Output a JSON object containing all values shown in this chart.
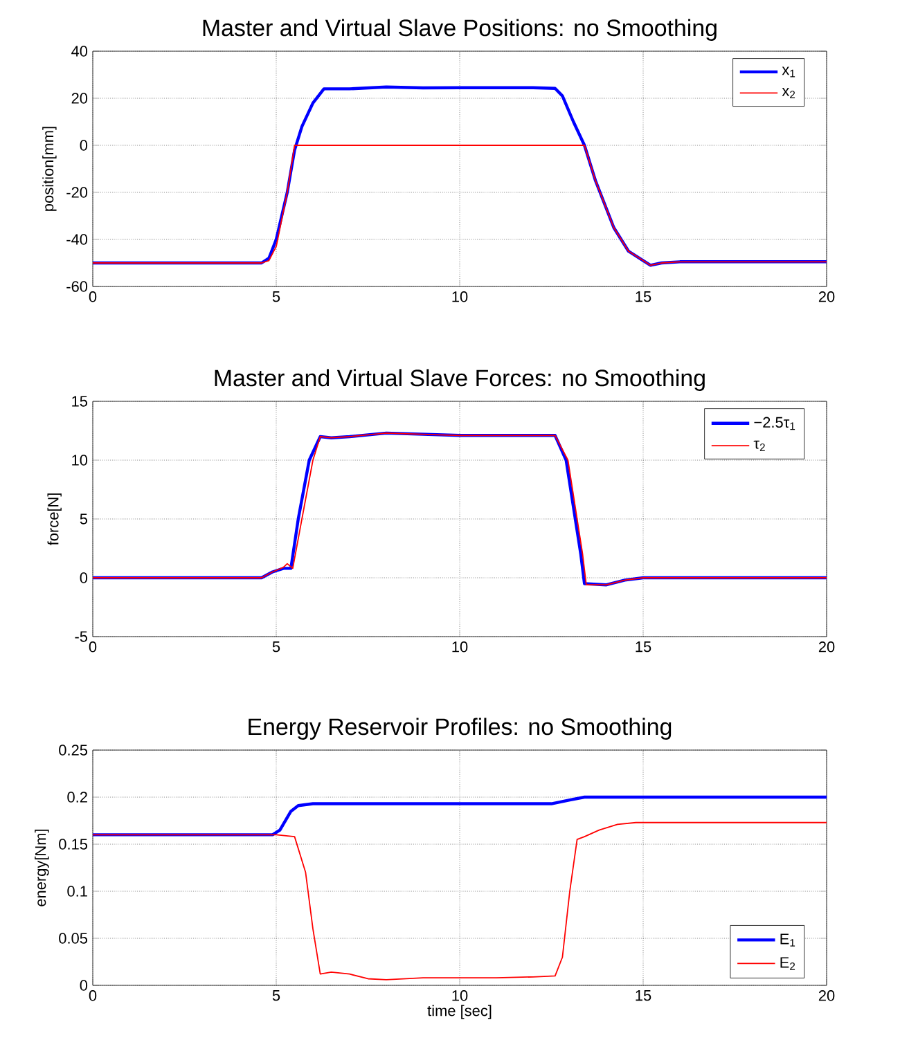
{
  "chart_data": [
    {
      "type": "line",
      "title": "Master and Virtual Slave Positions: no Smoothing",
      "ylabel": "position[mm]",
      "xlim": [
        0,
        20
      ],
      "xticks": [
        0,
        5,
        10,
        15,
        20
      ],
      "ylim": [
        -60,
        40
      ],
      "yticks": [
        -60,
        -40,
        -20,
        0,
        20,
        40
      ],
      "grid": true,
      "legend": "top right",
      "series": [
        {
          "name": "x$_{1}$",
          "color": "#0000ff",
          "x": [
            0,
            4.6,
            4.8,
            5.0,
            5.3,
            5.5,
            5.7,
            6.0,
            6.3,
            7,
            8,
            9,
            10,
            12,
            12.6,
            12.8,
            13.1,
            13.4,
            13.7,
            14.2,
            14.6,
            15,
            15.2,
            15.5,
            16,
            20
          ],
          "values": [
            -50,
            -50,
            -48,
            -40,
            -20,
            -2,
            8,
            18,
            24,
            24,
            24.8,
            24.4,
            24.5,
            24.5,
            24.2,
            21,
            10,
            0,
            -15,
            -35,
            -45,
            -49,
            -51,
            -50,
            -49.5,
            -49.5
          ]
        },
        {
          "name": "x$_{2}$",
          "color": "#ff0000",
          "x": [
            0,
            4.6,
            4.8,
            5.0,
            5.3,
            5.5,
            13.4,
            13.7,
            14.2,
            14.6,
            15,
            15.2,
            15.5,
            16,
            20
          ],
          "values": [
            -50,
            -50,
            -49,
            -43,
            -20,
            0,
            0,
            -15,
            -35,
            -45,
            -49,
            -51,
            -50,
            -49.5,
            -49.5
          ]
        }
      ]
    },
    {
      "type": "line",
      "title": "Master and Virtual Slave Forces: no Smoothing",
      "ylabel": "force[N]",
      "xlim": [
        0,
        20
      ],
      "xticks": [
        0,
        5,
        10,
        15,
        20
      ],
      "ylim": [
        -5,
        15
      ],
      "yticks": [
        -5,
        0,
        5,
        10,
        15
      ],
      "grid": true,
      "legend": "top right",
      "series": [
        {
          "name": "−2.5τ$_{1}$",
          "color": "#0000ff",
          "x": [
            0,
            4.6,
            4.9,
            5.2,
            5.4,
            5.6,
            5.9,
            6.2,
            6.5,
            7,
            8,
            10,
            12,
            12.6,
            12.9,
            13.3,
            13.4,
            14,
            14.5,
            15,
            20
          ],
          "values": [
            0,
            0,
            0.5,
            0.8,
            0.8,
            5,
            10,
            12,
            11.9,
            12,
            12.3,
            12.1,
            12.1,
            12.1,
            10,
            2,
            -0.5,
            -0.6,
            -0.2,
            0,
            0
          ]
        },
        {
          "name": "τ$_{2}$",
          "color": "#ff0000",
          "x": [
            0,
            4.6,
            4.9,
            5.2,
            5.3,
            5.45,
            5.7,
            6.0,
            6.2,
            6.5,
            7,
            8,
            10,
            12,
            12.6,
            12.95,
            13.35,
            13.45,
            14,
            14.5,
            15,
            20
          ],
          "values": [
            0,
            0,
            0.5,
            0.9,
            1.2,
            0.8,
            5,
            10,
            12,
            11.9,
            12,
            12.3,
            12.1,
            12.1,
            12.1,
            10,
            2,
            -0.6,
            -0.6,
            -0.2,
            0,
            0
          ]
        }
      ]
    },
    {
      "type": "line",
      "title": "Energy Reservoir Profiles: no Smoothing",
      "xlabel": "time [sec]",
      "ylabel": "energy[Nm]",
      "xlim": [
        0,
        20
      ],
      "xticks": [
        0,
        5,
        10,
        15,
        20
      ],
      "ylim": [
        0,
        0.25
      ],
      "yticks": [
        0,
        0.05,
        0.1,
        0.15,
        0.2,
        0.25
      ],
      "grid": true,
      "legend": "bottom right",
      "series": [
        {
          "name": "E$_{1}$",
          "color": "#0000ff",
          "x": [
            0,
            4.9,
            5.1,
            5.4,
            5.6,
            6,
            12.5,
            13,
            13.4,
            20
          ],
          "values": [
            0.16,
            0.16,
            0.165,
            0.185,
            0.191,
            0.193,
            0.193,
            0.197,
            0.2,
            0.2
          ]
        },
        {
          "name": "E$_{2}$",
          "color": "#ff0000",
          "x": [
            0,
            5,
            5.5,
            5.8,
            6.0,
            6.2,
            6.5,
            7,
            7.5,
            8,
            9,
            10,
            11,
            12,
            12.6,
            12.8,
            13,
            13.2,
            13.4,
            13.8,
            14.3,
            14.8,
            20
          ],
          "values": [
            0.16,
            0.16,
            0.158,
            0.12,
            0.06,
            0.012,
            0.014,
            0.012,
            0.007,
            0.006,
            0.008,
            0.008,
            0.008,
            0.009,
            0.01,
            0.03,
            0.1,
            0.155,
            0.158,
            0.165,
            0.171,
            0.173,
            0.173
          ]
        }
      ]
    }
  ]
}
